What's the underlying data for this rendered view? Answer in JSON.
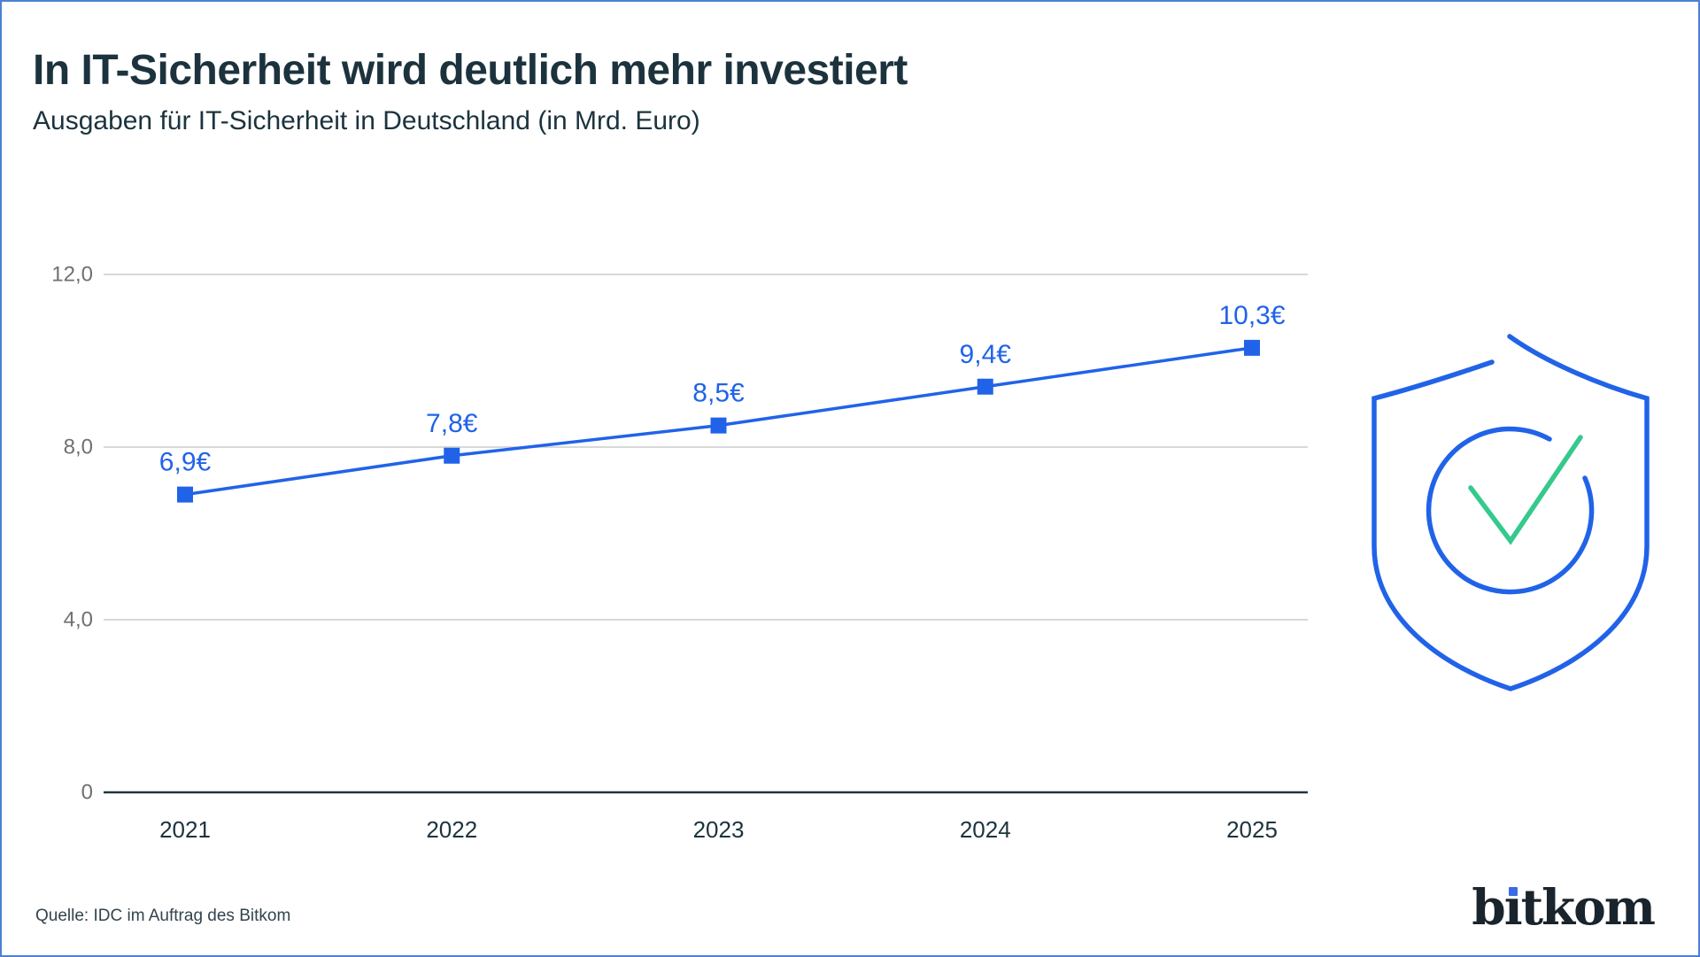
{
  "page": {
    "title": "In IT-Sicherheit wird deutlich mehr investiert",
    "subtitle": "Ausgaben für IT-Sicherheit in Deutschland (in Mrd. Euro)",
    "source": "Quelle: IDC im Auftrag des Bitkom"
  },
  "brand": {
    "name": "bitkom",
    "display_pre": "b",
    "display_i_dotless": "ı",
    "display_post": "tkom"
  },
  "icons": {
    "shield": "shield-check-icon"
  },
  "colors": {
    "accent_blue": "#2163e8",
    "check_green": "#35c98e",
    "dark_text": "#1d333e",
    "tick_gray": "#707070",
    "gridline": "#cccccc",
    "axis_dark": "#25343c",
    "frame_border": "#4d80d1",
    "logo_dark": "#1a242c"
  },
  "chart_data": {
    "type": "line",
    "title": "In IT-Sicherheit wird deutlich mehr investiert",
    "subtitle": "Ausgaben für IT-Sicherheit in Deutschland (in Mrd. Euro)",
    "series_name": "Ausgaben für IT-Sicherheit in Deutschland (Mrd. Euro)",
    "categories": [
      "2021",
      "2022",
      "2023",
      "2024",
      "2025"
    ],
    "values": [
      6.9,
      7.8,
      8.5,
      9.4,
      10.3
    ],
    "value_labels": [
      "6,9€",
      "7,8€",
      "8,5€",
      "9,4€",
      "10,3€"
    ],
    "xlabel": "",
    "ylabel": "",
    "ylim": [
      0,
      12
    ],
    "y_ticks": [
      {
        "value": 12,
        "label": "12,0"
      },
      {
        "value": 8,
        "label": "8,0"
      },
      {
        "value": 4,
        "label": "4,0"
      },
      {
        "value": 0,
        "label": "0"
      }
    ],
    "grid": true,
    "legend": false,
    "marker": "square",
    "line_color": "#2163e8"
  }
}
